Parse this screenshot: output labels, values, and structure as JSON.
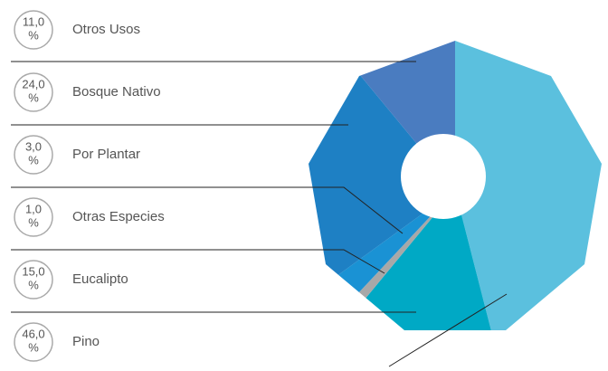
{
  "chart_data": {
    "type": "pie",
    "donut": true,
    "categories": [
      "Pino",
      "Eucalipto",
      "Otras Especies",
      "Por Plantar",
      "Bosque Nativo",
      "Otros Usos"
    ],
    "values": [
      46,
      15,
      1,
      3,
      24,
      11
    ],
    "value_labels": [
      "46,0 %",
      "15,0 %",
      "1,0 %",
      "3,0 %",
      "24,0 %",
      "11,0 %"
    ],
    "colors": [
      "#5bc0de",
      "#00a9c5",
      "#a8a8a8",
      "#1a92d4",
      "#1e80c4",
      "#4a7cc0"
    ]
  }
}
